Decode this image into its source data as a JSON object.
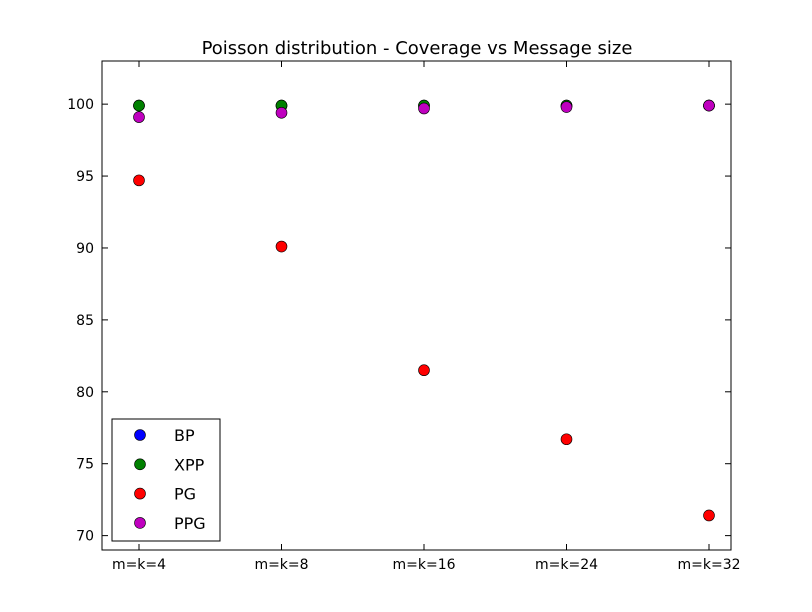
{
  "chart_data": {
    "type": "scatter",
    "title": "Poisson distribution - Coverage vs Message size",
    "xlabel": "",
    "ylabel": "",
    "categories": [
      "m=k=4",
      "m=k=8",
      "m=k=16",
      "m=k=24",
      "m=k=32"
    ],
    "ylim": [
      69,
      103
    ],
    "yticks": [
      70,
      75,
      80,
      85,
      90,
      95,
      100
    ],
    "grid": false,
    "legend_position": "lower-left",
    "series": [
      {
        "name": "BP",
        "color": "#0000ff",
        "values": [
          99.9,
          99.9,
          99.9,
          99.9,
          99.9
        ]
      },
      {
        "name": "XPP",
        "color": "#008000",
        "values": [
          99.9,
          99.9,
          99.9,
          99.9,
          99.9
        ]
      },
      {
        "name": "PG",
        "color": "#ff0000",
        "values": [
          94.7,
          90.1,
          81.5,
          76.7,
          71.4
        ]
      },
      {
        "name": "PPG",
        "color": "#bf00bf",
        "values": [
          99.1,
          99.4,
          99.7,
          99.8,
          99.9
        ]
      }
    ]
  }
}
